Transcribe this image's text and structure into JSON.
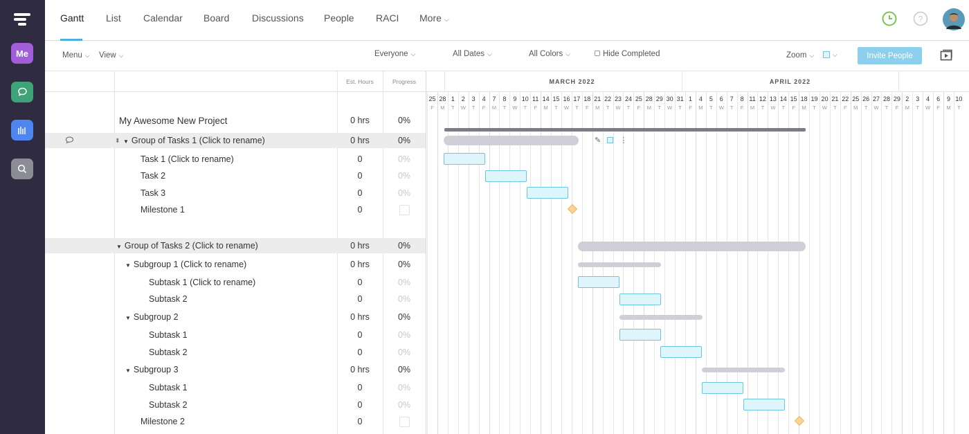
{
  "nav": {
    "tabs": [
      "Gantt",
      "List",
      "Calendar",
      "Board",
      "Discussions",
      "People",
      "RACI",
      "More"
    ]
  },
  "sidebar": {
    "me_label": "Me"
  },
  "toolbar": {
    "menu": "Menu",
    "view": "View",
    "everyone": "Everyone",
    "all_dates": "All Dates",
    "all_colors": "All Colors",
    "hide_completed": "Hide Completed",
    "zoom": "Zoom",
    "invite": "Invite People"
  },
  "columns": {
    "est_hours": "Est. Hours",
    "progress": "Progress"
  },
  "project": {
    "name": "My Awesome New Project",
    "hrs": "0 hrs",
    "progress": "0%"
  },
  "rows": [
    {
      "name": "Group of Tasks 1 (Click to rename)",
      "hrs": "0 hrs",
      "progress": "0%"
    },
    {
      "name": "Task 1 (Click to rename)",
      "hrs": "0",
      "progress": "0%"
    },
    {
      "name": "Task 2",
      "hrs": "0",
      "progress": "0%"
    },
    {
      "name": "Task 3",
      "hrs": "0",
      "progress": "0%"
    },
    {
      "name": "Milestone 1",
      "hrs": "0",
      "progress": ""
    },
    {
      "name": "Group of Tasks 2 (Click to rename)",
      "hrs": "0 hrs",
      "progress": "0%"
    },
    {
      "name": "Subgroup 1 (Click to rename)",
      "hrs": "0 hrs",
      "progress": "0%"
    },
    {
      "name": "Subtask 1 (Click to rename)",
      "hrs": "0",
      "progress": "0%"
    },
    {
      "name": "Subtask 2",
      "hrs": "0",
      "progress": "0%"
    },
    {
      "name": "Subgroup 2",
      "hrs": "0 hrs",
      "progress": "0%"
    },
    {
      "name": "Subtask 1",
      "hrs": "0",
      "progress": "0%"
    },
    {
      "name": "Subtask 2",
      "hrs": "0",
      "progress": "0%"
    },
    {
      "name": "Subgroup 3",
      "hrs": "0 hrs",
      "progress": "0%"
    },
    {
      "name": "Subtask 1",
      "hrs": "0",
      "progress": "0%"
    },
    {
      "name": "Subtask 2",
      "hrs": "0",
      "progress": "0%"
    },
    {
      "name": "Milestone 2",
      "hrs": "0",
      "progress": ""
    }
  ],
  "timeline": {
    "months": [
      "MARCH 2022",
      "APRIL 2022"
    ],
    "days": [
      [
        "25",
        "F"
      ],
      [
        "28",
        "M"
      ],
      [
        "1",
        "T"
      ],
      [
        "2",
        "W"
      ],
      [
        "3",
        "T"
      ],
      [
        "4",
        "F"
      ],
      [
        "7",
        "M"
      ],
      [
        "8",
        "T"
      ],
      [
        "9",
        "W"
      ],
      [
        "10",
        "T"
      ],
      [
        "11",
        "F"
      ],
      [
        "14",
        "M"
      ],
      [
        "15",
        "T"
      ],
      [
        "16",
        "W"
      ],
      [
        "17",
        "T"
      ],
      [
        "18",
        "F"
      ],
      [
        "21",
        "M"
      ],
      [
        "22",
        "T"
      ],
      [
        "23",
        "W"
      ],
      [
        "24",
        "T"
      ],
      [
        "25",
        "F"
      ],
      [
        "28",
        "M"
      ],
      [
        "29",
        "T"
      ],
      [
        "30",
        "W"
      ],
      [
        "31",
        "T"
      ],
      [
        "1",
        "F"
      ],
      [
        "4",
        "M"
      ],
      [
        "5",
        "T"
      ],
      [
        "6",
        "W"
      ],
      [
        "7",
        "T"
      ],
      [
        "8",
        "F"
      ],
      [
        "11",
        "M"
      ],
      [
        "12",
        "T"
      ],
      [
        "13",
        "W"
      ],
      [
        "14",
        "T"
      ],
      [
        "15",
        "F"
      ],
      [
        "18",
        "M"
      ],
      [
        "19",
        "T"
      ],
      [
        "20",
        "W"
      ],
      [
        "21",
        "T"
      ],
      [
        "22",
        "F"
      ],
      [
        "25",
        "M"
      ],
      [
        "26",
        "T"
      ],
      [
        "27",
        "W"
      ],
      [
        "28",
        "T"
      ],
      [
        "29",
        "F"
      ],
      [
        "2",
        "M"
      ],
      [
        "3",
        "T"
      ],
      [
        "4",
        "W"
      ],
      [
        "6",
        "F"
      ],
      [
        "9",
        "M"
      ],
      [
        "10",
        "T"
      ]
    ]
  },
  "colors": {
    "accent": "#4ab0dd",
    "task_fill": "#ddf5fb",
    "task_border": "#6cc6e2",
    "group_bar": "#cfcfd8",
    "milestone": "#fbd399",
    "sidebar_bg": "#2f2b40"
  }
}
